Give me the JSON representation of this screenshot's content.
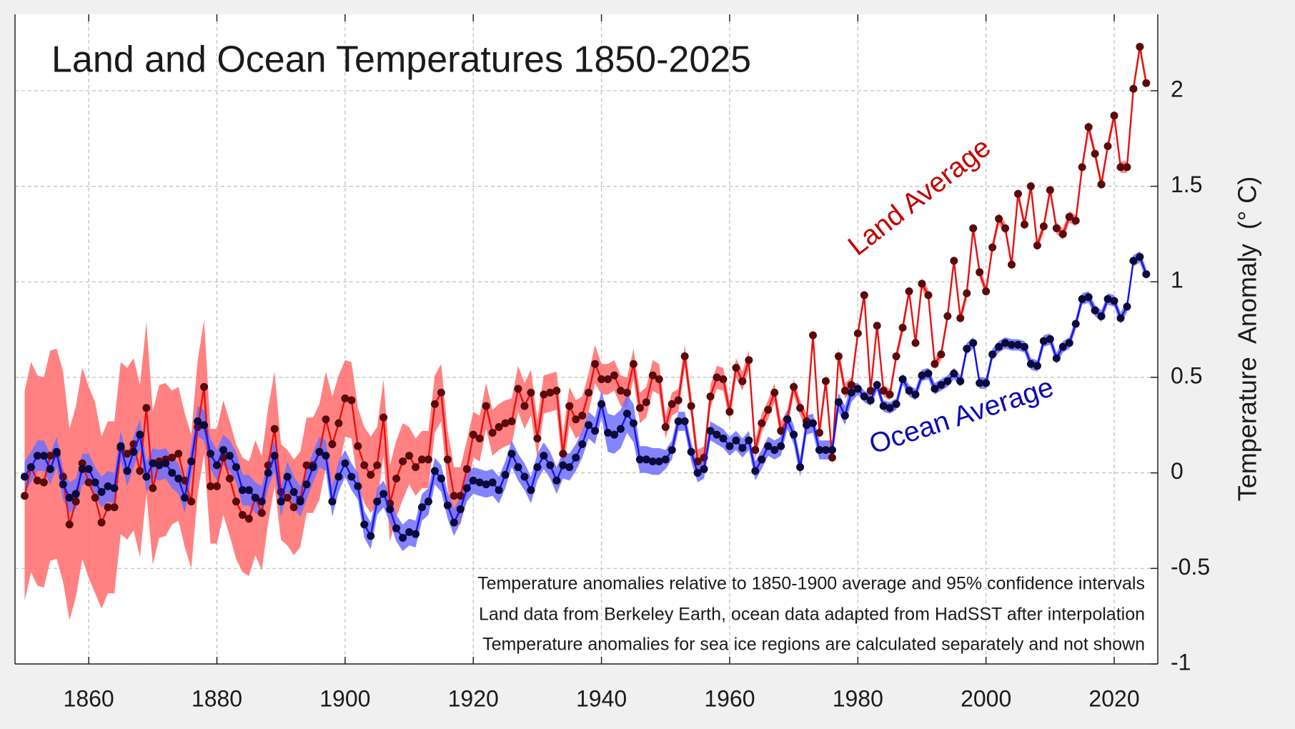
{
  "chart_data": {
    "type": "line",
    "title": "Land and Ocean Temperatures 1850-2025",
    "y_label": "Temperature  Anomaly  (° C)",
    "notes": [
      "Temperature anomalies relative to 1850-1900 average and 95% confidence intervals",
      "Land data from Berkeley Earth, ocean data adapted from HadSST after interpolation",
      "Temperature anomalies for sea ice regions are calculated separately and not shown"
    ],
    "x": [
      1850,
      1851,
      1852,
      1853,
      1854,
      1855,
      1856,
      1857,
      1858,
      1859,
      1860,
      1861,
      1862,
      1863,
      1864,
      1865,
      1866,
      1867,
      1868,
      1869,
      1870,
      1871,
      1872,
      1873,
      1874,
      1875,
      1876,
      1877,
      1878,
      1879,
      1880,
      1881,
      1882,
      1883,
      1884,
      1885,
      1886,
      1887,
      1888,
      1889,
      1890,
      1891,
      1892,
      1893,
      1894,
      1895,
      1896,
      1897,
      1898,
      1899,
      1900,
      1901,
      1902,
      1903,
      1904,
      1905,
      1906,
      1907,
      1908,
      1909,
      1910,
      1911,
      1912,
      1913,
      1914,
      1915,
      1916,
      1917,
      1918,
      1919,
      1920,
      1921,
      1922,
      1923,
      1924,
      1925,
      1926,
      1927,
      1928,
      1929,
      1930,
      1931,
      1932,
      1933,
      1934,
      1935,
      1936,
      1937,
      1938,
      1939,
      1940,
      1941,
      1942,
      1943,
      1944,
      1945,
      1946,
      1947,
      1948,
      1949,
      1950,
      1951,
      1952,
      1953,
      1954,
      1955,
      1956,
      1957,
      1958,
      1959,
      1960,
      1961,
      1962,
      1963,
      1964,
      1965,
      1966,
      1967,
      1968,
      1969,
      1970,
      1971,
      1972,
      1973,
      1974,
      1975,
      1976,
      1977,
      1978,
      1979,
      1980,
      1981,
      1982,
      1983,
      1984,
      1985,
      1986,
      1987,
      1988,
      1989,
      1990,
      1991,
      1992,
      1993,
      1994,
      1995,
      1996,
      1997,
      1998,
      1999,
      2000,
      2001,
      2002,
      2003,
      2004,
      2005,
      2006,
      2007,
      2008,
      2009,
      2010,
      2011,
      2012,
      2013,
      2014,
      2015,
      2016,
      2017,
      2018,
      2019,
      2020,
      2021,
      2022,
      2023,
      2024,
      2025
    ],
    "series": [
      {
        "name": "Land Average",
        "color": "#e81010",
        "marker_color": "#5a0a0a",
        "band_color": "#ff6b6b",
        "values": [
          -0.12,
          0.03,
          -0.04,
          -0.05,
          0.09,
          0.1,
          -0.02,
          -0.27,
          -0.15,
          0.05,
          -0.05,
          -0.13,
          -0.26,
          -0.18,
          -0.18,
          0.13,
          0.1,
          0.15,
          0.01,
          0.34,
          -0.08,
          0.06,
          0.07,
          0.08,
          0.1,
          -0.04,
          -0.15,
          0.24,
          0.45,
          -0.07,
          -0.07,
          0.08,
          -0.03,
          -0.15,
          -0.22,
          -0.24,
          -0.13,
          -0.21,
          0.04,
          0.23,
          -0.1,
          -0.13,
          -0.18,
          -0.14,
          0.04,
          0.04,
          0.11,
          0.28,
          0.15,
          0.26,
          0.39,
          0.38,
          0.14,
          0.04,
          -0.01,
          0.04,
          0.29,
          -0.16,
          -0.03,
          0.06,
          0.09,
          0.03,
          0.07,
          0.07,
          0.36,
          0.42,
          0.07,
          -0.12,
          -0.12,
          0.02,
          0.2,
          0.18,
          0.35,
          0.21,
          0.24,
          0.26,
          0.27,
          0.44,
          0.35,
          0.42,
          0.18,
          0.41,
          0.42,
          0.43,
          0.1,
          0.35,
          0.28,
          0.3,
          0.42,
          0.57,
          0.49,
          0.49,
          0.51,
          0.43,
          0.42,
          0.57,
          0.34,
          0.37,
          0.51,
          0.49,
          0.24,
          0.36,
          0.38,
          0.61,
          0.35,
          0.06,
          0.08,
          0.4,
          0.5,
          0.49,
          0.32,
          0.55,
          0.48,
          0.59,
          0.12,
          0.26,
          0.33,
          0.42,
          0.22,
          0.28,
          0.45,
          0.34,
          0.27,
          0.72,
          0.21,
          0.48,
          0.08,
          0.61,
          0.43,
          0.46,
          0.73,
          0.93,
          0.43,
          0.77,
          0.43,
          0.41,
          0.61,
          0.76,
          0.95,
          0.68,
          0.99,
          0.93,
          0.57,
          0.62,
          0.82,
          1.11,
          0.81,
          0.94,
          1.28,
          1.05,
          0.95,
          1.18,
          1.33,
          1.28,
          1.09,
          1.46,
          1.3,
          1.5,
          1.19,
          1.29,
          1.48,
          1.28,
          1.25,
          1.34,
          1.32,
          1.6,
          1.81,
          1.67,
          1.51,
          1.71,
          1.87,
          1.6,
          1.6,
          2.01,
          2.23,
          2.04
        ],
        "uncertainty": [
          0.55,
          0.55,
          0.55,
          0.55,
          0.55,
          0.55,
          0.55,
          0.5,
          0.5,
          0.5,
          0.5,
          0.5,
          0.45,
          0.45,
          0.45,
          0.45,
          0.45,
          0.45,
          0.45,
          0.45,
          0.4,
          0.4,
          0.4,
          0.35,
          0.35,
          0.35,
          0.35,
          0.35,
          0.35,
          0.3,
          0.3,
          0.3,
          0.3,
          0.3,
          0.3,
          0.3,
          0.3,
          0.3,
          0.3,
          0.3,
          0.25,
          0.25,
          0.25,
          0.25,
          0.25,
          0.25,
          0.25,
          0.25,
          0.25,
          0.25,
          0.2,
          0.2,
          0.2,
          0.2,
          0.2,
          0.2,
          0.2,
          0.2,
          0.2,
          0.2,
          0.15,
          0.15,
          0.15,
          0.15,
          0.15,
          0.15,
          0.15,
          0.15,
          0.15,
          0.15,
          0.12,
          0.12,
          0.12,
          0.12,
          0.12,
          0.12,
          0.12,
          0.12,
          0.12,
          0.12,
          0.1,
          0.1,
          0.1,
          0.1,
          0.1,
          0.1,
          0.1,
          0.1,
          0.1,
          0.1,
          0.08,
          0.08,
          0.08,
          0.08,
          0.08,
          0.08,
          0.08,
          0.08,
          0.08,
          0.08,
          0.06,
          0.06,
          0.06,
          0.06,
          0.06,
          0.06,
          0.06,
          0.06,
          0.06,
          0.06,
          0.05,
          0.05,
          0.05,
          0.05,
          0.05,
          0.05,
          0.05,
          0.05,
          0.05,
          0.05,
          0.04,
          0.04,
          0.04,
          0.04,
          0.04,
          0.04,
          0.04,
          0.04,
          0.04,
          0.04,
          0.03,
          0.03,
          0.03,
          0.03,
          0.03,
          0.03,
          0.03,
          0.03,
          0.03,
          0.03,
          0.03,
          0.03,
          0.03,
          0.03,
          0.03,
          0.03,
          0.03,
          0.03,
          0.03,
          0.03,
          0.03,
          0.03,
          0.03,
          0.03,
          0.03,
          0.03,
          0.03,
          0.03,
          0.03,
          0.03,
          0.03,
          0.03,
          0.03,
          0.03,
          0.03,
          0.03,
          0.03,
          0.03,
          0.03,
          0.03,
          0.03,
          0.03,
          0.03,
          0.03,
          0.03,
          0.03
        ]
      },
      {
        "name": "Ocean Average",
        "color": "#1414e6",
        "marker_color": "#0a0a3c",
        "band_color": "#6e6eff",
        "values": [
          -0.02,
          0.03,
          0.09,
          0.09,
          0.02,
          0.11,
          -0.06,
          -0.13,
          -0.11,
          0.02,
          0.02,
          -0.05,
          -0.1,
          -0.07,
          -0.08,
          0.14,
          0.01,
          0.11,
          0.2,
          -0.02,
          0.05,
          0.04,
          0.05,
          0.0,
          -0.03,
          -0.13,
          0.06,
          0.27,
          0.25,
          0.1,
          0.04,
          0.12,
          0.09,
          0.03,
          -0.09,
          -0.09,
          -0.13,
          -0.15,
          0.0,
          0.09,
          -0.15,
          -0.02,
          -0.1,
          -0.15,
          -0.06,
          0.03,
          0.11,
          0.09,
          -0.15,
          -0.02,
          0.05,
          -0.02,
          -0.07,
          -0.27,
          -0.33,
          -0.15,
          -0.11,
          -0.19,
          -0.29,
          -0.34,
          -0.31,
          -0.32,
          -0.18,
          -0.15,
          0.01,
          -0.03,
          -0.17,
          -0.26,
          -0.19,
          -0.08,
          -0.04,
          -0.05,
          -0.06,
          -0.05,
          -0.09,
          -0.01,
          0.1,
          0.03,
          -0.02,
          -0.09,
          0.03,
          0.09,
          0.04,
          -0.04,
          0.04,
          0.03,
          0.08,
          0.15,
          0.25,
          0.22,
          0.36,
          0.21,
          0.2,
          0.23,
          0.31,
          0.26,
          0.07,
          0.07,
          0.06,
          0.06,
          0.07,
          0.12,
          0.27,
          0.27,
          0.11,
          0.0,
          0.02,
          0.22,
          0.2,
          0.18,
          0.14,
          0.17,
          0.13,
          0.17,
          0.01,
          0.07,
          0.14,
          0.12,
          0.14,
          0.28,
          0.2,
          0.03,
          0.25,
          0.26,
          0.12,
          0.12,
          0.12,
          0.37,
          0.3,
          0.42,
          0.44,
          0.4,
          0.38,
          0.46,
          0.35,
          0.34,
          0.36,
          0.49,
          0.43,
          0.41,
          0.51,
          0.52,
          0.44,
          0.46,
          0.48,
          0.52,
          0.48,
          0.65,
          0.68,
          0.47,
          0.47,
          0.62,
          0.66,
          0.68,
          0.67,
          0.67,
          0.66,
          0.57,
          0.56,
          0.69,
          0.7,
          0.6,
          0.66,
          0.68,
          0.78,
          0.91,
          0.92,
          0.85,
          0.82,
          0.91,
          0.9,
          0.81,
          0.87,
          1.11,
          1.13,
          1.04
        ],
        "uncertainty": [
          0.08,
          0.08,
          0.08,
          0.08,
          0.08,
          0.08,
          0.08,
          0.08,
          0.08,
          0.08,
          0.08,
          0.08,
          0.08,
          0.08,
          0.08,
          0.08,
          0.08,
          0.08,
          0.08,
          0.08,
          0.08,
          0.08,
          0.08,
          0.08,
          0.08,
          0.08,
          0.08,
          0.08,
          0.08,
          0.08,
          0.08,
          0.08,
          0.08,
          0.08,
          0.08,
          0.08,
          0.08,
          0.08,
          0.08,
          0.08,
          0.08,
          0.08,
          0.08,
          0.08,
          0.08,
          0.08,
          0.08,
          0.08,
          0.08,
          0.08,
          0.07,
          0.07,
          0.07,
          0.07,
          0.07,
          0.07,
          0.07,
          0.07,
          0.07,
          0.07,
          0.07,
          0.07,
          0.07,
          0.07,
          0.07,
          0.07,
          0.07,
          0.07,
          0.07,
          0.07,
          0.07,
          0.07,
          0.07,
          0.07,
          0.07,
          0.07,
          0.07,
          0.07,
          0.07,
          0.07,
          0.07,
          0.07,
          0.07,
          0.07,
          0.07,
          0.07,
          0.07,
          0.07,
          0.07,
          0.07,
          0.07,
          0.1,
          0.1,
          0.1,
          0.1,
          0.1,
          0.07,
          0.07,
          0.07,
          0.07,
          0.05,
          0.05,
          0.05,
          0.05,
          0.05,
          0.05,
          0.05,
          0.05,
          0.05,
          0.05,
          0.05,
          0.05,
          0.05,
          0.05,
          0.05,
          0.05,
          0.05,
          0.05,
          0.05,
          0.05,
          0.05,
          0.05,
          0.05,
          0.05,
          0.05,
          0.05,
          0.05,
          0.05,
          0.05,
          0.05,
          0.03,
          0.03,
          0.03,
          0.03,
          0.03,
          0.03,
          0.03,
          0.03,
          0.03,
          0.03,
          0.03,
          0.03,
          0.03,
          0.03,
          0.03,
          0.03,
          0.03,
          0.03,
          0.03,
          0.03,
          0.03,
          0.03,
          0.03,
          0.03,
          0.03,
          0.03,
          0.03,
          0.03,
          0.03,
          0.03,
          0.03,
          0.03,
          0.03,
          0.03,
          0.03,
          0.03,
          0.03,
          0.03,
          0.03,
          0.03,
          0.03,
          0.03,
          0.03,
          0.03,
          0.03,
          0.03
        ]
      }
    ],
    "xlim": [
      1848.5,
      2026.8
    ],
    "xticks": [
      1860,
      1880,
      1900,
      1920,
      1940,
      1960,
      1980,
      2000,
      2020
    ],
    "ylim": [
      -1,
      2.4
    ],
    "yticks": [
      -1,
      -0.5,
      0,
      0.5,
      1,
      1.5,
      2
    ],
    "grid": true
  }
}
